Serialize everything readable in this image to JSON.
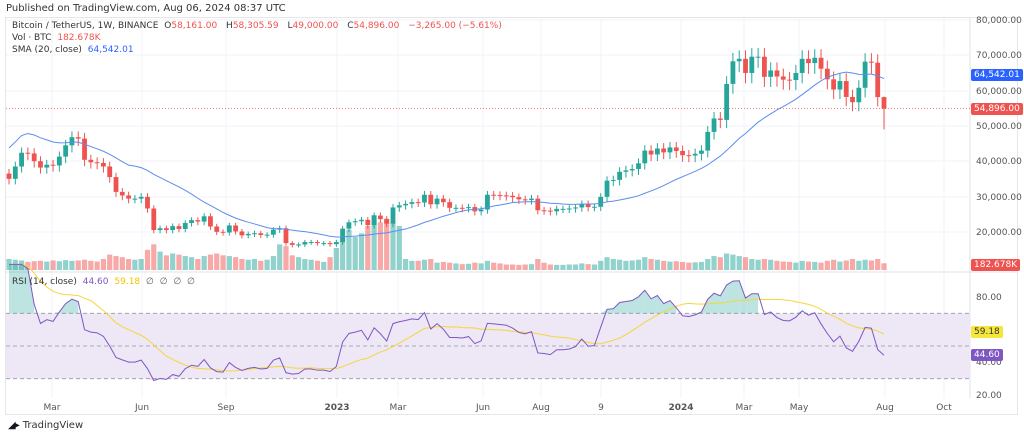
{
  "published": "Published on TradingView.com, Aug 06, 2024 08:37 UTC",
  "legend": {
    "symbol": "Bitcoin / TetherUS, 1W, BINANCE",
    "o_label": "O",
    "o": "58,161.00",
    "h_label": "H",
    "h": "58,305.59",
    "l_label": "L",
    "l": "49,000.00",
    "c_label": "C",
    "c": "54,896.00",
    "change": "−3,265.00 (−5.61%)",
    "vol_label": "Vol · BTC",
    "vol": "182.678K",
    "sma_label": "SMA (20, close)",
    "sma": "64,542.01",
    "rsi_label": "RSI (14, close)",
    "rsi": "44.60",
    "rsi_ma": "59.18",
    "rsi_extra": [
      "∅",
      "∅",
      "∅",
      "∅"
    ]
  },
  "price_tags": {
    "sma": "64,542.01",
    "last": "54,896.00",
    "volume": "182.678K",
    "rsi_ma": "59.18",
    "rsi": "44.60"
  },
  "colors": {
    "up": "#26a69a",
    "down": "#ef5350",
    "sma": "#5b8def",
    "rsi": "#7e57c2",
    "rsi_ma": "#f5d63a",
    "band": "#ede7f6"
  },
  "footer": {
    "brand": "TradingView"
  },
  "chart_data": {
    "type": "candlestick",
    "interval": "1W",
    "exchange": "BINANCE",
    "y_ticks": [
      "80,000.00",
      "70,000.00",
      "60,000.00",
      "50,000.00",
      "40,000.00",
      "30,000.00",
      "20,000.00"
    ],
    "ylim": [
      17000,
      80000
    ],
    "rsi_ticks": [
      "80.00",
      "40.00",
      "20.00"
    ],
    "rsi_bands": [
      70,
      50,
      30
    ],
    "x_ticks": [
      "Mar",
      "Jun",
      "Sep",
      "2023",
      "Mar",
      "Jun",
      "Aug",
      "9",
      "2024",
      "Mar",
      "May",
      "Aug",
      "Oct"
    ],
    "close": [
      35000,
      38500,
      42400,
      42200,
      40000,
      38200,
      39000,
      38800,
      41300,
      44500,
      46800,
      46400,
      40400,
      39700,
      39500,
      38500,
      35500,
      31300,
      30300,
      29400,
      29400,
      29900,
      26600,
      20500,
      21000,
      20500,
      21600,
      20800,
      22500,
      23300,
      22900,
      24400,
      21500,
      20000,
      19800,
      21800,
      20100,
      19000,
      19400,
      19600,
      19100,
      19200,
      20600,
      21000,
      16800,
      16300,
      16400,
      17100,
      17100,
      16800,
      16800,
      16500,
      17100,
      20900,
      22700,
      23000,
      23400,
      21900,
      24600,
      23600,
      22300,
      26900,
      27500,
      27900,
      28400,
      28300,
      30500,
      27800,
      29400,
      28400,
      26800,
      26800,
      26700,
      27000,
      25800,
      26300,
      30500,
      30400,
      30300,
      30200,
      29800,
      29200,
      29000,
      29400,
      26100,
      26000,
      25800,
      26500,
      26500,
      26600,
      26900,
      27900,
      27000,
      27100,
      29900,
      34500,
      34700,
      37000,
      37400,
      37800,
      39400,
      43000,
      41900,
      43600,
      42500,
      43900,
      42900,
      41700,
      41600,
      42100,
      43000,
      48300,
      52100,
      51700,
      61900,
      68300,
      69000,
      65000,
      69600,
      69600,
      63900,
      65700,
      64000,
      63100,
      63000,
      65000,
      69000,
      67800,
      69300,
      66200,
      63200,
      60300,
      62700,
      58200,
      56700,
      60800,
      68200,
      67900,
      58161,
      54896
    ],
    "volume_k": [
      300,
      280,
      260,
      220,
      240,
      250,
      230,
      260,
      240,
      270,
      250,
      260,
      280,
      250,
      230,
      300,
      420,
      380,
      350,
      300,
      280,
      300,
      550,
      700,
      500,
      400,
      450,
      420,
      380,
      350,
      300,
      380,
      420,
      450,
      400,
      380,
      350,
      300,
      280,
      300,
      250,
      280,
      380,
      700,
      650,
      400,
      350,
      300,
      280,
      250,
      220,
      350,
      600,
      900,
      1100,
      900,
      1000,
      1200,
      1500,
      1300,
      1400,
      1300,
      1200,
      300,
      250,
      250,
      280,
      300,
      200,
      220,
      200,
      180,
      160,
      170,
      200,
      180,
      250,
      200,
      180,
      150,
      150,
      140,
      150,
      160,
      300,
      200,
      150,
      140,
      140,
      150,
      150,
      180,
      160,
      150,
      250,
      350,
      300,
      280,
      250,
      260,
      280,
      350,
      300,
      280,
      250,
      230,
      240,
      220,
      200,
      210,
      220,
      300,
      380,
      350,
      450,
      420,
      380,
      350,
      300,
      280,
      300,
      280,
      250,
      230,
      220,
      200,
      250,
      230,
      220,
      200,
      250,
      280,
      230,
      260,
      300,
      250,
      280,
      260,
      300,
      182.678
    ]
  }
}
